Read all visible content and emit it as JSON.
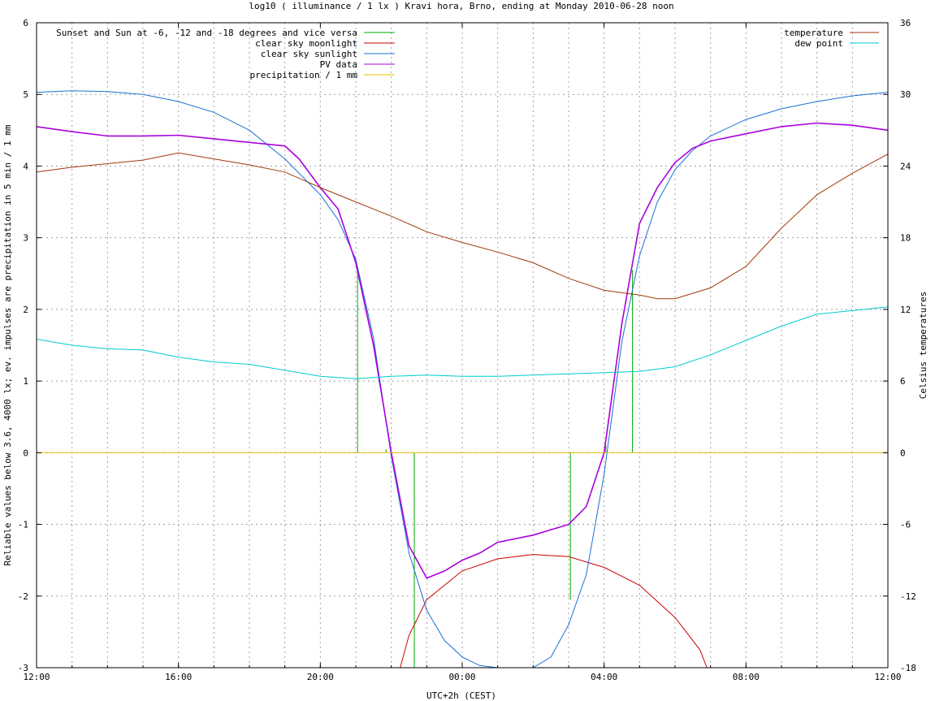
{
  "chart_data": {
    "type": "line",
    "title": "log10 ( illuminance / 1 lx ) Kravi hora, Brno, ending at Monday 2010-06-28 noon",
    "xlabel": "UTC+2h (CEST)",
    "ylabel_left": "Reliable values below 3.6, 4000 lx; ev. impulses are precipitation in 5 min / 1 mm",
    "ylabel_right": "Celsius temperatures",
    "x_range_hours": [
      12,
      36
    ],
    "x_ticks": [
      "12:00",
      "16:00",
      "20:00",
      "00:00",
      "04:00",
      "08:00",
      "12:00"
    ],
    "ylim_left": [
      -3,
      6
    ],
    "y_ticks_left": [
      "-3",
      "-2",
      "-1",
      "0",
      "1",
      "2",
      "3",
      "4",
      "5",
      "6"
    ],
    "ylim_right": [
      -18,
      36
    ],
    "y_ticks_right": [
      "-18",
      "-12",
      "-6",
      "0",
      "6",
      "12",
      "18",
      "24",
      "30",
      "36"
    ],
    "grid": true,
    "legend_left_placement": "top-left",
    "legend_right_placement": "top-right",
    "colors": {
      "twilight": "#00aa00",
      "moonlight": "#cc0000",
      "sunlight": "#1a6fd6",
      "pv": "#aa00dd",
      "precip": "#e0c000",
      "temperature": "#a0380a",
      "dewpoint": "#00cccc"
    },
    "series": [
      {
        "name": "Sunset and Sun at -6, -12 and -18 degrees and vice versa",
        "kind": "impulses",
        "axis": "left",
        "points": [
          [
            21.05,
            2.55
          ],
          [
            21.85,
            0.05
          ],
          [
            22.65,
            -3.0
          ],
          [
            27.05,
            -2.05
          ],
          [
            28.05,
            0.1
          ],
          [
            28.8,
            2.55
          ]
        ]
      },
      {
        "name": "clear sky moonlight",
        "kind": "line",
        "axis": "left",
        "points": [
          [
            22.25,
            -3.0
          ],
          [
            22.5,
            -2.55
          ],
          [
            23.0,
            -2.05
          ],
          [
            24.0,
            -1.65
          ],
          [
            25.0,
            -1.48
          ],
          [
            26.0,
            -1.42
          ],
          [
            27.0,
            -1.45
          ],
          [
            28.0,
            -1.6
          ],
          [
            29.0,
            -1.85
          ],
          [
            30.0,
            -2.3
          ],
          [
            30.7,
            -2.75
          ],
          [
            30.9,
            -3.0
          ]
        ]
      },
      {
        "name": "clear sky sunlight",
        "kind": "line",
        "axis": "left",
        "points": [
          [
            12.0,
            5.03
          ],
          [
            13.0,
            5.05
          ],
          [
            14.0,
            5.04
          ],
          [
            15.0,
            5.0
          ],
          [
            16.0,
            4.9
          ],
          [
            17.0,
            4.75
          ],
          [
            18.0,
            4.5
          ],
          [
            19.0,
            4.1
          ],
          [
            20.0,
            3.6
          ],
          [
            20.5,
            3.25
          ],
          [
            21.0,
            2.7
          ],
          [
            21.5,
            1.6
          ],
          [
            22.0,
            -0.05
          ],
          [
            22.5,
            -1.4
          ],
          [
            23.0,
            -2.2
          ],
          [
            23.5,
            -2.62
          ],
          [
            24.0,
            -2.85
          ],
          [
            24.5,
            -2.97
          ],
          [
            25.0,
            -3.0
          ],
          [
            26.0,
            -3.0
          ],
          [
            26.5,
            -2.85
          ],
          [
            27.0,
            -2.4
          ],
          [
            27.5,
            -1.7
          ],
          [
            28.0,
            -0.3
          ],
          [
            28.5,
            1.55
          ],
          [
            29.0,
            2.75
          ],
          [
            29.5,
            3.5
          ],
          [
            30.0,
            3.95
          ],
          [
            30.5,
            4.22
          ],
          [
            31.0,
            4.42
          ],
          [
            32.0,
            4.65
          ],
          [
            33.0,
            4.8
          ],
          [
            34.0,
            4.9
          ],
          [
            35.0,
            4.98
          ],
          [
            36.0,
            5.03
          ]
        ]
      },
      {
        "name": "PV data",
        "kind": "line",
        "axis": "left",
        "points": [
          [
            12.0,
            4.55
          ],
          [
            13.0,
            4.48
          ],
          [
            14.0,
            4.42
          ],
          [
            15.0,
            4.42
          ],
          [
            16.0,
            4.43
          ],
          [
            17.0,
            4.38
          ],
          [
            18.0,
            4.33
          ],
          [
            19.0,
            4.28
          ],
          [
            19.4,
            4.1
          ],
          [
            20.0,
            3.7
          ],
          [
            20.5,
            3.4
          ],
          [
            21.0,
            2.65
          ],
          [
            21.5,
            1.5
          ],
          [
            22.0,
            0.0
          ],
          [
            22.5,
            -1.3
          ],
          [
            23.0,
            -1.75
          ],
          [
            23.5,
            -1.65
          ],
          [
            24.0,
            -1.5
          ],
          [
            24.5,
            -1.4
          ],
          [
            25.0,
            -1.25
          ],
          [
            26.0,
            -1.15
          ],
          [
            27.0,
            -1.0
          ],
          [
            27.5,
            -0.75
          ],
          [
            28.0,
            0.0
          ],
          [
            28.5,
            1.8
          ],
          [
            29.0,
            3.2
          ],
          [
            29.5,
            3.7
          ],
          [
            30.0,
            4.05
          ],
          [
            30.5,
            4.25
          ],
          [
            31.0,
            4.35
          ],
          [
            32.0,
            4.45
          ],
          [
            33.0,
            4.55
          ],
          [
            34.0,
            4.6
          ],
          [
            35.0,
            4.57
          ],
          [
            36.0,
            4.5
          ]
        ]
      },
      {
        "name": "precipitation / 1 mm",
        "kind": "line",
        "axis": "left",
        "points": [
          [
            12.0,
            0.0
          ],
          [
            36.0,
            0.0
          ]
        ]
      },
      {
        "name": "temperature",
        "kind": "line",
        "axis": "right",
        "points": [
          [
            12.0,
            23.5
          ],
          [
            13.0,
            23.9
          ],
          [
            14.0,
            24.2
          ],
          [
            15.0,
            24.5
          ],
          [
            16.0,
            25.1
          ],
          [
            17.0,
            24.6
          ],
          [
            18.0,
            24.1
          ],
          [
            19.0,
            23.5
          ],
          [
            20.0,
            22.2
          ],
          [
            21.0,
            21.0
          ],
          [
            22.0,
            19.8
          ],
          [
            23.0,
            18.5
          ],
          [
            24.0,
            17.6
          ],
          [
            25.0,
            16.8
          ],
          [
            26.0,
            15.9
          ],
          [
            27.0,
            14.6
          ],
          [
            28.0,
            13.6
          ],
          [
            29.0,
            13.2
          ],
          [
            29.5,
            12.9
          ],
          [
            30.0,
            12.9
          ],
          [
            31.0,
            13.8
          ],
          [
            32.0,
            15.6
          ],
          [
            33.0,
            18.8
          ],
          [
            34.0,
            21.6
          ],
          [
            35.0,
            23.4
          ],
          [
            36.0,
            25.0
          ]
        ]
      },
      {
        "name": "dew point",
        "kind": "line",
        "axis": "right",
        "points": [
          [
            12.0,
            9.5
          ],
          [
            13.0,
            9.0
          ],
          [
            14.0,
            8.7
          ],
          [
            15.0,
            8.6
          ],
          [
            16.0,
            8.0
          ],
          [
            17.0,
            7.6
          ],
          [
            18.0,
            7.4
          ],
          [
            19.0,
            6.9
          ],
          [
            20.0,
            6.4
          ],
          [
            21.0,
            6.2
          ],
          [
            22.0,
            6.4
          ],
          [
            23.0,
            6.5
          ],
          [
            24.0,
            6.4
          ],
          [
            25.0,
            6.4
          ],
          [
            26.0,
            6.5
          ],
          [
            27.0,
            6.6
          ],
          [
            28.0,
            6.7
          ],
          [
            29.0,
            6.8
          ],
          [
            30.0,
            7.2
          ],
          [
            31.0,
            8.2
          ],
          [
            32.0,
            9.4
          ],
          [
            33.0,
            10.6
          ],
          [
            34.0,
            11.6
          ],
          [
            35.0,
            11.9
          ],
          [
            36.0,
            12.2
          ]
        ]
      }
    ]
  }
}
